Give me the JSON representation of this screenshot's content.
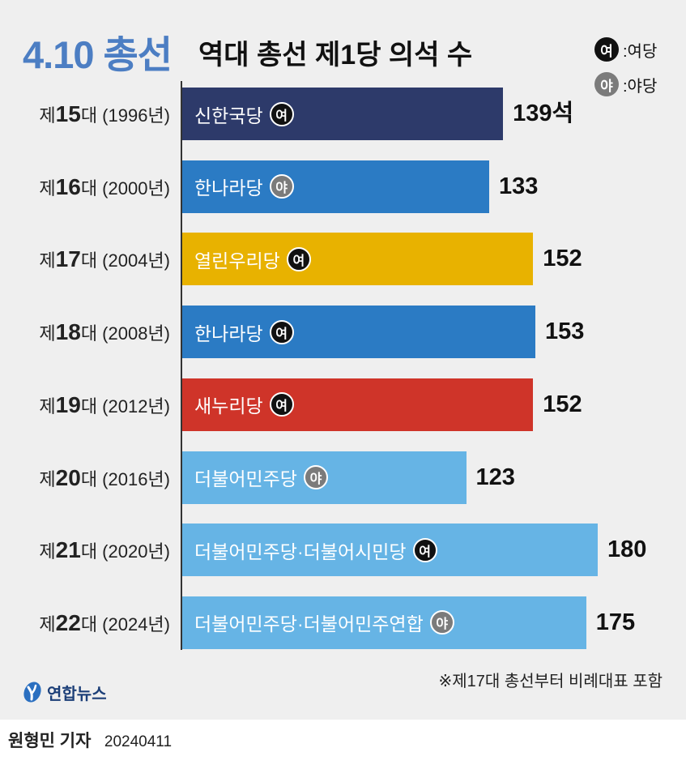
{
  "header": {
    "tag": "4.10 총선",
    "tag_color": "#4c7ec3"
  },
  "legend": [
    {
      "badge": "여",
      "label": ":여당",
      "color": "#111111"
    },
    {
      "badge": "야",
      "label": ":야당",
      "color": "#7b7b7b"
    }
  ],
  "chart_data": {
    "type": "bar",
    "orientation": "horizontal",
    "title": "역대 총선 제1당 의석 수",
    "xlim": [
      0,
      200
    ],
    "grid": false,
    "categories": [
      "제15대 (1996년)",
      "제16대 (2000년)",
      "제17대 (2004년)",
      "제18대 (2008년)",
      "제19대 (2012년)",
      "제20대 (2016년)",
      "제21대 (2020년)",
      "제22대 (2024년)"
    ],
    "values": [
      139,
      133,
      152,
      153,
      152,
      123,
      180,
      175
    ],
    "data_labels": [
      "139석",
      "133",
      "152",
      "153",
      "152",
      "123",
      "180",
      "175"
    ],
    "bar_labels": [
      "신한국당",
      "한나라당",
      "열린우리당",
      "한나라당",
      "새누리당",
      "더불어민주당",
      "더불어민주당·더불어시민당",
      "더불어민주당·더불어민주연합"
    ],
    "bar_badges": [
      "여",
      "야",
      "여",
      "여",
      "여",
      "야",
      "여",
      "야"
    ],
    "bar_colors": [
      "#2d3a6a",
      "#2b7bc4",
      "#e8b200",
      "#2b7bc4",
      "#cf3429",
      "#66b4e5",
      "#66b4e5",
      "#66b4e5"
    ]
  },
  "footnote": "※제17대 총선부터 비례대표 포함",
  "logo": {
    "icon": "yonhap-logo-icon",
    "text": "연합뉴스",
    "color": "#1c3f78"
  },
  "credit": {
    "reporter": "원형민 기자",
    "date": "20240411"
  },
  "colors": {
    "background": "#efefef",
    "axis": "#333333"
  }
}
